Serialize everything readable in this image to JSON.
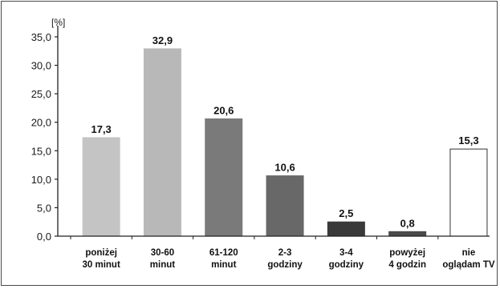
{
  "chart_data": {
    "type": "bar",
    "unit_label": "[%]",
    "ylim": [
      0,
      35
    ],
    "yticks": [
      "0,0",
      "5,0",
      "10,0",
      "15,0",
      "20,0",
      "25,0",
      "30,0",
      "35,0"
    ],
    "ytick_values": [
      0,
      5,
      10,
      15,
      20,
      25,
      30,
      35
    ],
    "grid": false,
    "categories": [
      [
        "poniżej",
        "30 minut"
      ],
      [
        "30-60",
        "minut"
      ],
      [
        "61-120",
        "minut"
      ],
      [
        "2-3",
        "godziny"
      ],
      [
        "3-4",
        "godziny"
      ],
      [
        "powyżej",
        "4 godzin"
      ],
      [
        "nie",
        "oglądam TV"
      ]
    ],
    "values": [
      17.3,
      32.9,
      20.6,
      10.6,
      2.5,
      0.8,
      15.3
    ],
    "value_labels": [
      "17,3",
      "32,9",
      "20,6",
      "10,6",
      "2,5",
      "0,8",
      "15,3"
    ],
    "bar_colors": [
      "#c4c4c4",
      "#b8b8b8",
      "#7a7a7a",
      "#686868",
      "#3a3a3a",
      "#4a4a4a",
      "#ffffff"
    ],
    "bar_outline_colors": [
      "#c4c4c4",
      "#b8b8b8",
      "#7a7a7a",
      "#686868",
      "#3a3a3a",
      "#4a4a4a",
      "#333333"
    ],
    "axis_color": "#222222"
  }
}
